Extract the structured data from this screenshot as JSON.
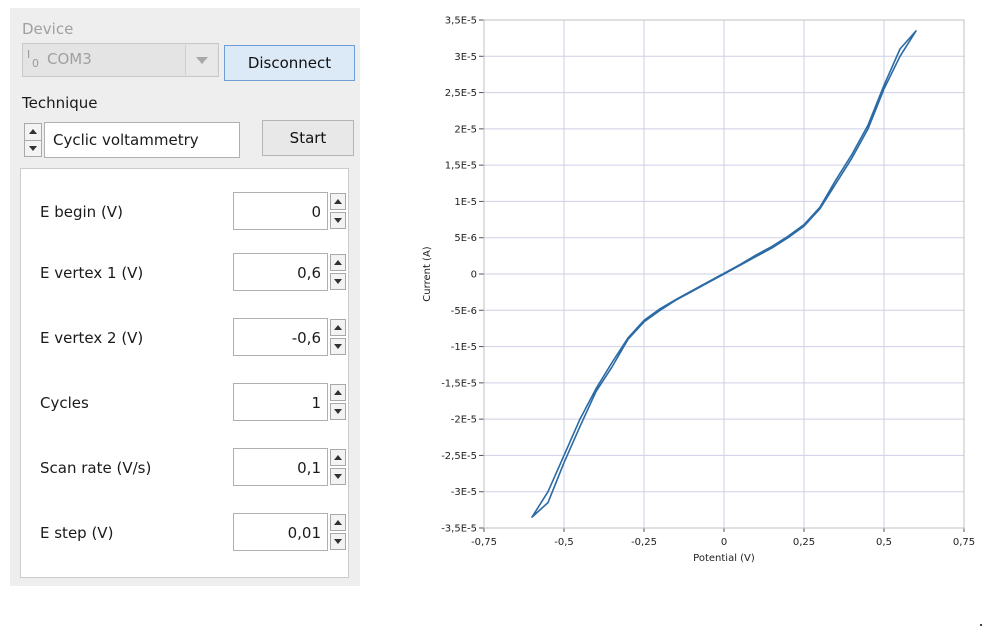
{
  "device": {
    "label": "Device",
    "io_icon": {
      "top": "I",
      "bottom": "0"
    },
    "port": "COM3",
    "disconnect_label": "Disconnect"
  },
  "technique": {
    "label": "Technique",
    "value": "Cyclic voltammetry",
    "start_label": "Start"
  },
  "params": [
    {
      "label": "E begin (V)",
      "value": "0"
    },
    {
      "label": "E vertex 1 (V)",
      "value": "0,6"
    },
    {
      "label": "E vertex 2 (V)",
      "value": "-0,6"
    },
    {
      "label": "Cycles",
      "value": "1"
    },
    {
      "label": "Scan rate (V/s)",
      "value": "0,1"
    },
    {
      "label": "E step (V)",
      "value": "0,01"
    }
  ],
  "colors": {
    "trace": "#2a6aa5",
    "grid": "#cfcfe8",
    "accent": "#6e9ed3"
  },
  "chart_data": {
    "type": "line",
    "xlabel": "Potential (V)",
    "ylabel": "Current (A)",
    "xlim": [
      -0.75,
      0.75
    ],
    "ylim": [
      -3.5e-05,
      3.5e-05
    ],
    "x_ticks": [
      {
        "v": -0.75,
        "label": "-0,75"
      },
      {
        "v": -0.5,
        "label": "-0,5"
      },
      {
        "v": -0.25,
        "label": "-0,25"
      },
      {
        "v": 0,
        "label": "0"
      },
      {
        "v": 0.25,
        "label": "0,25"
      },
      {
        "v": 0.5,
        "label": "0,5"
      },
      {
        "v": 0.75,
        "label": "0,75"
      }
    ],
    "y_ticks": [
      {
        "v": 3.5e-05,
        "label": "3,5E-5"
      },
      {
        "v": 3e-05,
        "label": "3E-5"
      },
      {
        "v": 2.5e-05,
        "label": "2,5E-5"
      },
      {
        "v": 2e-05,
        "label": "2E-5"
      },
      {
        "v": 1.5e-05,
        "label": "1,5E-5"
      },
      {
        "v": 1e-05,
        "label": "1E-5"
      },
      {
        "v": 5e-06,
        "label": "5E-6"
      },
      {
        "v": 0,
        "label": "0"
      },
      {
        "v": -5e-06,
        "label": "-5E-6"
      },
      {
        "v": -1e-05,
        "label": "-1E-5"
      },
      {
        "v": -1.5e-05,
        "label": "-1,5E-5"
      },
      {
        "v": -2e-05,
        "label": "-2E-5"
      },
      {
        "v": -2.5e-05,
        "label": "-2,5E-5"
      },
      {
        "v": -3e-05,
        "label": "-3E-5"
      },
      {
        "v": -3.5e-05,
        "label": "-3,5E-5"
      }
    ],
    "grid": true,
    "series": [
      {
        "x": [
          0,
          0.05,
          0.1,
          0.15,
          0.2,
          0.25,
          0.3,
          0.35,
          0.4,
          0.45,
          0.5,
          0.55,
          0.6,
          0.55,
          0.5,
          0.45,
          0.4,
          0.35,
          0.3,
          0.25,
          0.2,
          0.15,
          0.1,
          0.05,
          0,
          -0.05,
          -0.1,
          -0.15,
          -0.2,
          -0.25,
          -0.3,
          -0.35,
          -0.4,
          -0.45,
          -0.5,
          -0.55,
          -0.6,
          -0.55,
          -0.5,
          -0.45,
          -0.4,
          -0.35,
          -0.3,
          -0.25,
          -0.2,
          -0.15,
          -0.1,
          -0.05,
          0
        ],
        "y": [
          0,
          1.2e-06,
          2.4e-06,
          3.6e-06,
          5e-06,
          6.6e-06,
          9e-06,
          1.25e-05,
          1.6e-05,
          2e-05,
          2.55e-05,
          3e-05,
          3.35e-05,
          3.1e-05,
          2.6e-05,
          2.05e-05,
          1.65e-05,
          1.3e-05,
          9.2e-06,
          6.8e-06,
          5.2e-06,
          3.8e-06,
          2.6e-06,
          1.3e-06,
          1e-07,
          -1.1e-06,
          -2.3e-06,
          -3.5e-06,
          -4.8e-06,
          -6.4e-06,
          -8.8e-06,
          -1.22e-05,
          -1.58e-05,
          -2e-05,
          -2.5e-05,
          -3e-05,
          -3.35e-05,
          -3.15e-05,
          -2.6e-05,
          -2.1e-05,
          -1.62e-05,
          -1.28e-05,
          -9e-06,
          -6.6e-06,
          -5e-06,
          -3.6e-06,
          -2.4e-06,
          -1.2e-06,
          0
        ]
      }
    ]
  }
}
